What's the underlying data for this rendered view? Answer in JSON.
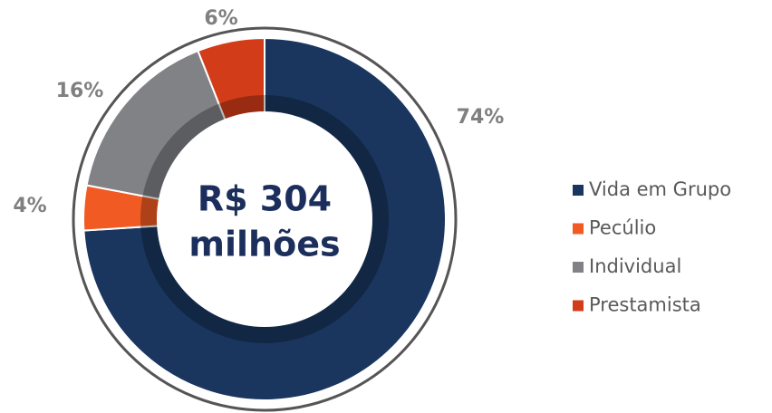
{
  "chart_data": {
    "type": "donut",
    "center_label": [
      "R$ 304",
      "milhões"
    ],
    "categories": [
      "Vida em Grupo",
      "Pecúlio",
      "Individual",
      "Prestamista"
    ],
    "values": [
      74,
      4,
      16,
      6
    ],
    "value_labels": [
      "74%",
      "4%",
      "16%",
      "6%"
    ],
    "colors": [
      "#1a365f",
      "#f15a22",
      "#808285",
      "#d33c19"
    ],
    "legend": "right"
  }
}
